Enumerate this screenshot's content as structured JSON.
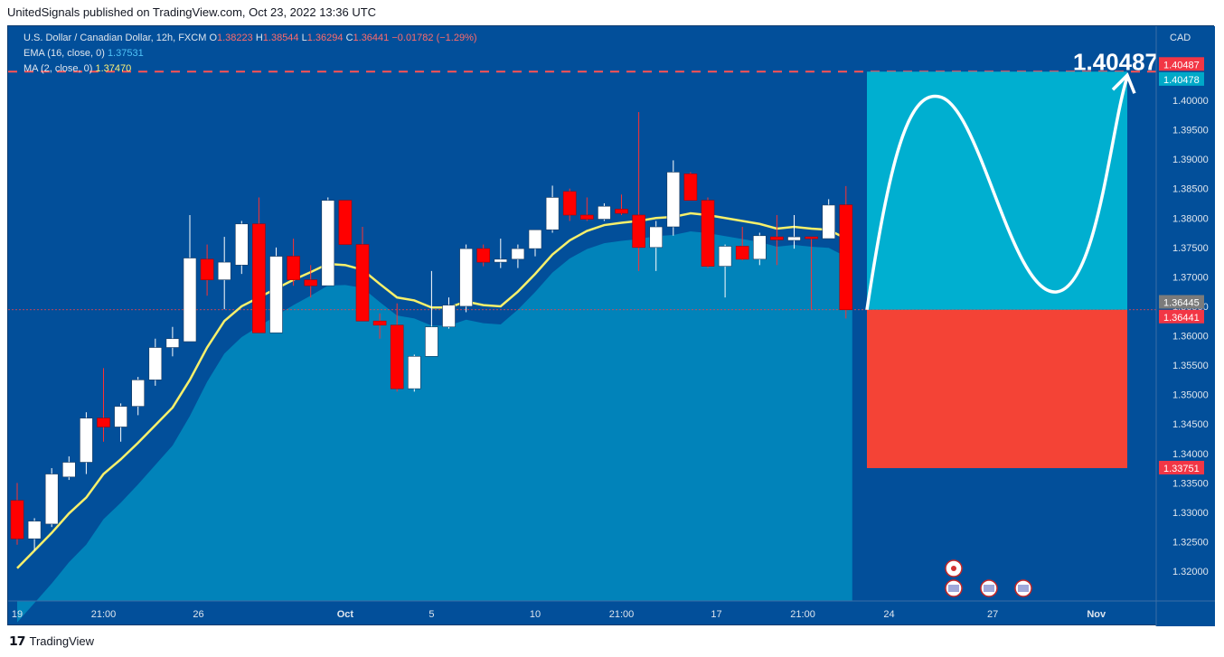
{
  "header": {
    "published": "UnitedSignals published on TradingView.com, Oct 23, 2022 13:36 UTC"
  },
  "footer": {
    "brand": "TradingView"
  },
  "legend": {
    "symbol": "U.S. Dollar / Canadian Dollar, 12h, FXCM",
    "o_label": "O",
    "o": "1.38223",
    "h_label": "H",
    "h": "1.38544",
    "l_label": "L",
    "l": "1.36294",
    "c_label": "C",
    "c": "1.36441",
    "change": "−0.01782 (−1.29%)",
    "ema_label": "EMA (16, close, 0)",
    "ema_value": "1.37531",
    "ma_label": "MA (2, close, 0)",
    "ma_value": "1.37470"
  },
  "target_label": "1.40487",
  "currency": "CAD",
  "colors": {
    "background": "#024f9a",
    "up_candle": "#ffffff",
    "down_candle": "#ff0000",
    "ma_line": "#f7f06b",
    "area_fill": "#0188be",
    "profit_zone": "#00afd0",
    "loss_zone": "#f44336",
    "target_line": "#ff5252"
  },
  "chart_data": {
    "type": "candlestick",
    "yaxis_ticks": [
      1.32,
      1.325,
      1.33,
      1.335,
      1.34,
      1.345,
      1.35,
      1.355,
      1.36,
      1.365,
      1.37,
      1.375,
      1.38,
      1.385,
      1.39,
      1.395,
      1.4
    ],
    "ylim": [
      1.315,
      1.408
    ],
    "xaxis_ticks": [
      {
        "label": "19",
        "index": 0
      },
      {
        "label": "21:00",
        "index": 5
      },
      {
        "label": "26",
        "index": 10.5
      },
      {
        "label": "Oct",
        "index": 19
      },
      {
        "label": "5",
        "index": 24
      },
      {
        "label": "10",
        "index": 30
      },
      {
        "label": "21:00",
        "index": 35
      },
      {
        "label": "17",
        "index": 40.5
      },
      {
        "label": "21:00",
        "index": 45.5
      },
      {
        "label": "24",
        "index": 50.5
      },
      {
        "label": "27",
        "index": 56.5
      },
      {
        "label": "Nov",
        "index": 62.5
      }
    ],
    "candles": [
      [
        1.332,
        1.335,
        1.3245,
        1.3255
      ],
      [
        1.3255,
        1.329,
        1.3235,
        1.3285
      ],
      [
        1.328,
        1.3375,
        1.3275,
        1.3365
      ],
      [
        1.336,
        1.3395,
        1.3355,
        1.3385
      ],
      [
        1.3385,
        1.347,
        1.3365,
        1.346
      ],
      [
        1.346,
        1.3545,
        1.342,
        1.3445
      ],
      [
        1.3445,
        1.3485,
        1.342,
        1.348
      ],
      [
        1.348,
        1.353,
        1.3465,
        1.3525
      ],
      [
        1.3525,
        1.3595,
        1.3515,
        1.358
      ],
      [
        1.358,
        1.3615,
        1.3565,
        1.3595
      ],
      [
        1.359,
        1.3805,
        1.359,
        1.3732
      ],
      [
        1.373,
        1.3755,
        1.3668,
        1.3695
      ],
      [
        1.3695,
        1.3768,
        1.3645,
        1.3725
      ],
      [
        1.372,
        1.3795,
        1.3705,
        1.379
      ],
      [
        1.379,
        1.3835,
        1.3605,
        1.3605
      ],
      [
        1.3605,
        1.375,
        1.3605,
        1.3735
      ],
      [
        1.3735,
        1.3765,
        1.3685,
        1.3695
      ],
      [
        1.3695,
        1.372,
        1.3665,
        1.3685
      ],
      [
        1.3685,
        1.3835,
        1.3685,
        1.383
      ],
      [
        1.383,
        1.383,
        1.3755,
        1.3755
      ],
      [
        1.3755,
        1.3785,
        1.3625,
        1.3625
      ],
      [
        1.3625,
        1.3638,
        1.3595,
        1.3618
      ],
      [
        1.3618,
        1.3655,
        1.3505,
        1.351
      ],
      [
        1.351,
        1.3568,
        1.3505,
        1.3565
      ],
      [
        1.3565,
        1.371,
        1.3565,
        1.3615
      ],
      [
        1.3615,
        1.3665,
        1.3612,
        1.3652
      ],
      [
        1.365,
        1.3755,
        1.364,
        1.3748
      ],
      [
        1.3748,
        1.3755,
        1.3718,
        1.3725
      ],
      [
        1.3725,
        1.3765,
        1.3715,
        1.373
      ],
      [
        1.373,
        1.3755,
        1.3715,
        1.3748
      ],
      [
        1.3748,
        1.378,
        1.3735,
        1.378
      ],
      [
        1.378,
        1.3855,
        1.3775,
        1.3835
      ],
      [
        1.3845,
        1.385,
        1.3795,
        1.3805
      ],
      [
        1.3805,
        1.3835,
        1.3795,
        1.3798
      ],
      [
        1.3798,
        1.3825,
        1.3795,
        1.382
      ],
      [
        1.3815,
        1.384,
        1.3805,
        1.3808
      ],
      [
        1.3805,
        1.398,
        1.371,
        1.375
      ],
      [
        1.375,
        1.3795,
        1.371,
        1.3785
      ],
      [
        1.3785,
        1.3898,
        1.377,
        1.3878
      ],
      [
        1.3875,
        1.3878,
        1.383,
        1.383
      ],
      [
        1.383,
        1.3835,
        1.3715,
        1.3718
      ],
      [
        1.3718,
        1.3755,
        1.3665,
        1.3752
      ],
      [
        1.3752,
        1.3785,
        1.3728,
        1.373
      ],
      [
        1.373,
        1.3775,
        1.372,
        1.377
      ],
      [
        1.3768,
        1.3805,
        1.372,
        1.3763
      ],
      [
        1.3762,
        1.3805,
        1.3748,
        1.3768
      ],
      [
        1.3768,
        1.3765,
        1.3645,
        1.3765
      ],
      [
        1.3765,
        1.3832,
        1.3765,
        1.3822
      ],
      [
        1.38223,
        1.38544,
        1.36294,
        1.36441
      ]
    ],
    "ma_line": [
      1.3205,
      1.3235,
      1.3265,
      1.3298,
      1.3325,
      1.3365,
      1.339,
      1.3418,
      1.3448,
      1.3478,
      1.3525,
      1.358,
      1.3625,
      1.365,
      1.3665,
      1.368,
      1.3695,
      1.3708,
      1.3722,
      1.372,
      1.3712,
      1.3688,
      1.3665,
      1.366,
      1.3648,
      1.3648,
      1.3658,
      1.3652,
      1.365,
      1.3675,
      1.3705,
      1.3738,
      1.3762,
      1.3778,
      1.3788,
      1.3792,
      1.3795,
      1.38,
      1.3802,
      1.3808,
      1.3805,
      1.38,
      1.3795,
      1.379,
      1.3782,
      1.3785,
      1.3782,
      1.378,
      1.3765
    ],
    "target": 1.40487,
    "price_labels": [
      "1.40487",
      "1.40478",
      "1.36445",
      "1.36441",
      "1.33751"
    ],
    "projection": {
      "entry": 1.36441,
      "take_profit": 1.40487,
      "stop_loss": 1.33751
    }
  }
}
